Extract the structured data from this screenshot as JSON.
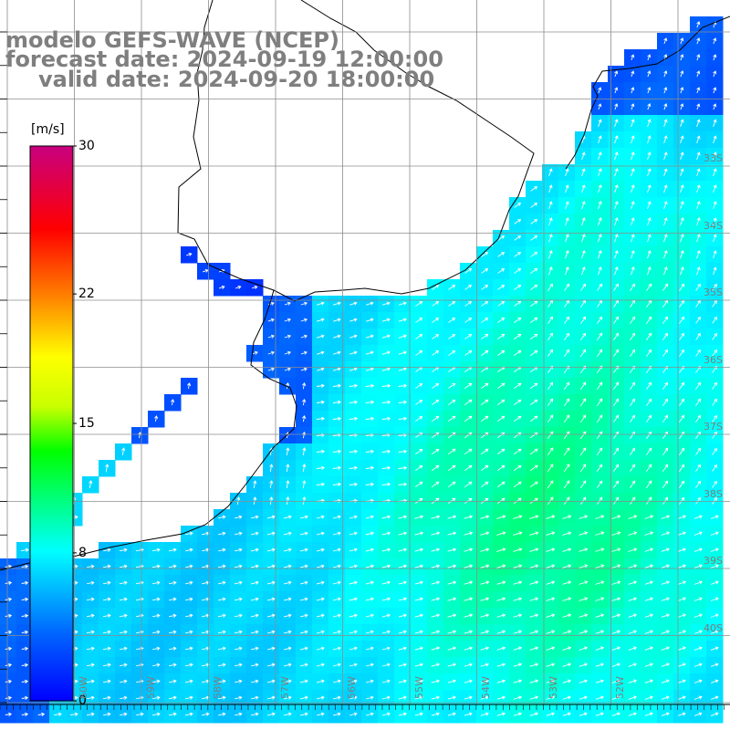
{
  "header": {
    "line1": "modelo GEFS-WAVE (NCEP)",
    "line2": "forecast date: 2024-09-19 12:00:00",
    "line3": "valid date: 2024-09-20 18:00:00"
  },
  "colorbar": {
    "units": "[m/s]",
    "ticks": [
      "30",
      "22",
      "15",
      "8",
      "0"
    ],
    "tick_values": [
      30,
      22,
      15,
      8,
      0
    ],
    "range": [
      0,
      30
    ],
    "colors": [
      "#0000ff",
      "#00c8ff",
      "#00ffff",
      "#00ff00",
      "#ffff00",
      "#ff8000",
      "#ff0000",
      "#c80080"
    ]
  },
  "map": {
    "variable": "wind speed and direction",
    "lat_labels": [
      "33S",
      "34S",
      "35S",
      "36S",
      "37S",
      "38S",
      "39S",
      "40S"
    ],
    "lon_labels": [
      "60W",
      "59W",
      "58W",
      "57W",
      "56W",
      "55W",
      "54W",
      "53W",
      "52W"
    ],
    "colors": {
      "land": "#ffffff",
      "coast": "#000000",
      "grid": "#8c8c8c",
      "arrows": "#ffffff"
    }
  }
}
